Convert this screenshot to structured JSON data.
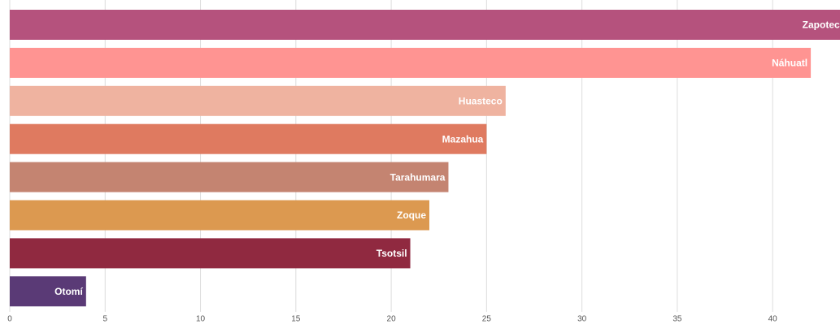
{
  "chart_data": {
    "type": "bar",
    "orientation": "horizontal",
    "categories": [
      "Zapoteco",
      "Náhuatl",
      "Huasteco",
      "Mazahua",
      "Tarahumara",
      "Zoque",
      "Tsotsil",
      "Otomí"
    ],
    "values": [
      44,
      42,
      26,
      25,
      23,
      22,
      21,
      4
    ],
    "colors": [
      "#b5527d",
      "#ff9492",
      "#efb3a0",
      "#df7a60",
      "#c48471",
      "#dc9950",
      "#902940",
      "#5a3a76"
    ],
    "xlim": [
      0,
      44
    ],
    "xticks": [
      0,
      5,
      10,
      15,
      20,
      25,
      30,
      35,
      40
    ],
    "grid": true,
    "title": "",
    "xlabel": "",
    "ylabel": ""
  }
}
